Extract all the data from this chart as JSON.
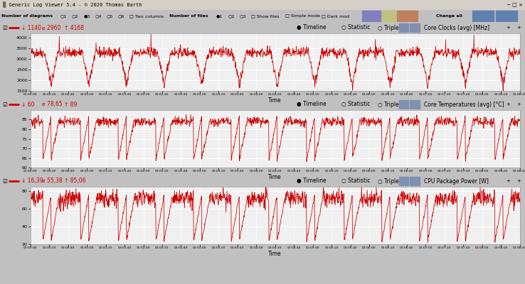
{
  "title_bar": "Generic Log Viewer 5.4 - © 2020 Thomas Barth",
  "toolbar_text": "Number of diagrams  ○1  ○2  ●3  ○4  ○5  ○6  □Two columns     Number of files  ●1  ○2  ○3  □Show files     □Simple mode  □Dark mod",
  "panel1": {
    "stats_min": "1140",
    "stats_avg": "2960",
    "stats_max": "4168",
    "label_right": "Core Clocks (avg) [MHz]",
    "ylim": [
      1500,
      4200
    ],
    "yticks": [
      1500,
      2000,
      2500,
      3000,
      3500,
      4000
    ]
  },
  "panel2": {
    "stats_min": "60",
    "stats_avg": "78,65",
    "stats_max": "89",
    "label_right": "Core Temperatures (avg) [°C]",
    "ylim": [
      60,
      90
    ],
    "yticks": [
      60,
      65,
      70,
      75,
      80,
      85
    ]
  },
  "panel3": {
    "stats_min": "16,39",
    "stats_avg": "55,38",
    "stats_max": "85,06",
    "label_right": "CPU Package Power [W]",
    "ylim": [
      20,
      85
    ],
    "yticks": [
      20,
      40,
      60,
      80
    ]
  },
  "xlabel": "Time",
  "line_color": "#cc0000",
  "plot_bg": "#f0f0f0",
  "header_bg": "#e8e8e8",
  "toolbar_bg": "#d8d8d8",
  "titlebar_bg": "#e8e8e8",
  "fig_bg": "#c0c0c0",
  "grid_color": "#ffffff",
  "time_start": "00:00:00",
  "time_end": "00:08:40",
  "time_step_sec": 20,
  "n_points": 1560
}
